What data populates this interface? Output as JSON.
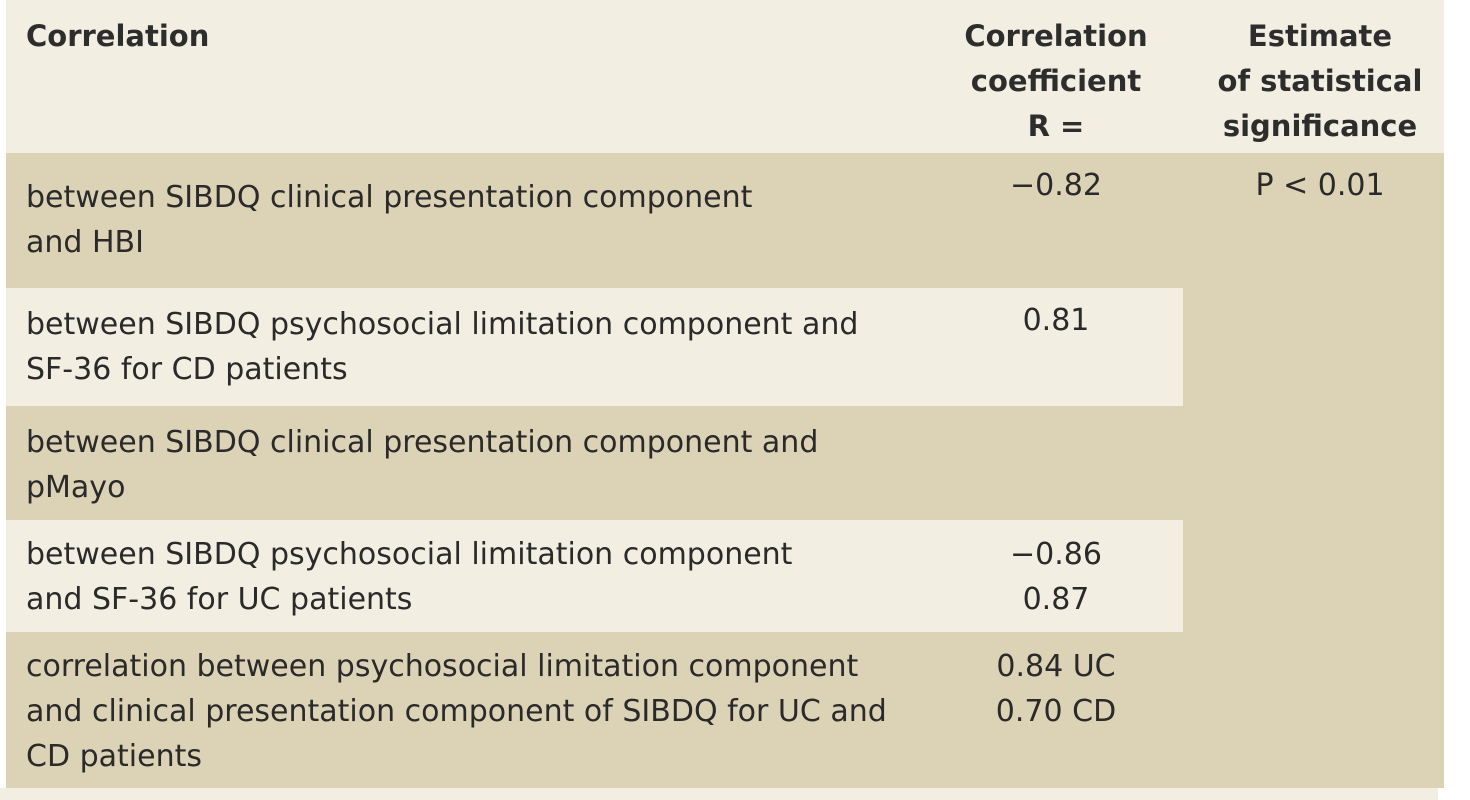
{
  "header": {
    "correlation": "Correlation",
    "coefficient_lines": [
      "Correlation",
      "coefficient",
      "R ="
    ],
    "significance_lines": [
      "Estimate",
      "of statistical",
      "significance"
    ]
  },
  "rows": [
    {
      "label_lines": [
        "between SIBDQ clinical presentation component",
        "and HBI"
      ],
      "values": [
        "−0.82"
      ]
    },
    {
      "label_lines": [
        "between SIBDQ psychosocial limitation component and",
        "SF-36 for CD patients"
      ],
      "values": [
        "0.81"
      ]
    },
    {
      "label_lines": [
        "between SIBDQ clinical presentation component and",
        "pMayo"
      ],
      "values": []
    },
    {
      "label_lines": [
        "between SIBDQ psychosocial limitation component",
        "and SF-36 for UC patients"
      ],
      "values": [
        "−0.86",
        "0.87"
      ]
    },
    {
      "label_lines": [
        "correlation between psychosocial limitation component",
        "and clinical presentation component of SIBDQ for UC and",
        "CD patients"
      ],
      "values": [
        "0.84 UC",
        "0.70 CD"
      ]
    }
  ],
  "significance": "P < 0.01"
}
